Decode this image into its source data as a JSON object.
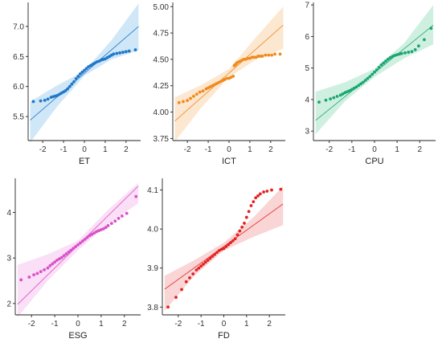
{
  "chart_data": [
    {
      "type": "scatter",
      "xlabel": "ET",
      "ylabel": "",
      "xlim": [
        -2.7,
        2.7
      ],
      "ylim": [
        5.1,
        7.4
      ],
      "xticks": [
        -2,
        -1,
        0,
        1,
        2
      ],
      "xtick_labels": [
        "-2",
        "-1",
        "0",
        "1",
        "2"
      ],
      "yticks": [
        5.5,
        6.0,
        6.5,
        7.0
      ],
      "ytick_labels": [
        "5.5",
        "6.0",
        "6.5",
        "7.0"
      ],
      "color": "#1f77c9",
      "band_color": "#a9d3f2",
      "line": {
        "intercept": 6.22,
        "slope": 0.3
      },
      "band": {
        "x": [
          -2.6,
          -1.3,
          0,
          1.3,
          2.6
        ],
        "lower": [
          5.07,
          5.67,
          6.18,
          6.45,
          6.6
        ],
        "upper": [
          5.75,
          6.02,
          6.26,
          6.77,
          7.38
        ]
      },
      "points": {
        "x": [
          -2.45,
          -2.1,
          -1.9,
          -1.75,
          -1.6,
          -1.5,
          -1.4,
          -1.3,
          -1.2,
          -1.1,
          -1.0,
          -0.9,
          -0.8,
          -0.7,
          -0.6,
          -0.5,
          -0.4,
          -0.3,
          -0.2,
          -0.1,
          0.0,
          0.1,
          0.2,
          0.3,
          0.4,
          0.5,
          0.6,
          0.7,
          0.8,
          0.9,
          1.0,
          1.1,
          1.2,
          1.3,
          1.4,
          1.55,
          1.7,
          1.85,
          2.0,
          2.15,
          2.45
        ],
        "y": [
          5.75,
          5.76,
          5.77,
          5.79,
          5.82,
          5.83,
          5.84,
          5.85,
          5.87,
          5.89,
          5.91,
          5.93,
          5.96,
          6.0,
          6.04,
          6.08,
          6.13,
          6.17,
          6.21,
          6.24,
          6.27,
          6.3,
          6.33,
          6.35,
          6.37,
          6.39,
          6.41,
          6.42,
          6.44,
          6.45,
          6.46,
          6.48,
          6.5,
          6.52,
          6.54,
          6.55,
          6.56,
          6.57,
          6.58,
          6.59,
          6.61
        ]
      }
    },
    {
      "type": "scatter",
      "xlabel": "ICT",
      "ylabel": "",
      "xlim": [
        -2.7,
        2.7
      ],
      "ylim": [
        3.73,
        5.04
      ],
      "xticks": [
        -2,
        -1,
        0,
        1,
        2
      ],
      "xtick_labels": [
        "-2",
        "-1",
        "0",
        "1",
        "2"
      ],
      "yticks": [
        3.75,
        4.0,
        4.25,
        4.5,
        4.75,
        5.0
      ],
      "ytick_labels": [
        "3.75",
        "4.00",
        "4.25",
        "4.50",
        "4.75",
        "5.00"
      ],
      "color": "#f08a1c",
      "band_color": "#f9d3ab",
      "line": {
        "intercept": 4.37,
        "slope": 0.175
      },
      "band": {
        "x": [
          -2.6,
          -1.3,
          0,
          1.3,
          2.6
        ],
        "lower": [
          3.72,
          4.05,
          4.33,
          4.5,
          4.6
        ],
        "upper": [
          4.14,
          4.26,
          4.41,
          4.71,
          5.0
        ]
      },
      "points": {
        "x": [
          -2.4,
          -2.2,
          -2.0,
          -1.85,
          -1.7,
          -1.55,
          -1.4,
          -1.25,
          -1.1,
          -1.0,
          -0.9,
          -0.8,
          -0.7,
          -0.6,
          -0.5,
          -0.4,
          -0.3,
          -0.2,
          -0.1,
          0.0,
          0.1,
          0.2,
          0.25,
          0.3,
          0.35,
          0.4,
          0.5,
          0.6,
          0.7,
          0.8,
          0.9,
          1.0,
          1.1,
          1.2,
          1.3,
          1.4,
          1.5,
          1.6,
          1.75,
          1.9,
          2.05,
          2.2,
          2.45
        ],
        "y": [
          4.09,
          4.1,
          4.11,
          4.13,
          4.15,
          4.17,
          4.19,
          4.2,
          4.22,
          4.23,
          4.24,
          4.25,
          4.26,
          4.27,
          4.28,
          4.29,
          4.3,
          4.31,
          4.32,
          4.32,
          4.33,
          4.34,
          4.44,
          4.45,
          4.46,
          4.47,
          4.48,
          4.49,
          4.5,
          4.5,
          4.51,
          4.51,
          4.52,
          4.52,
          4.52,
          4.53,
          4.53,
          4.53,
          4.54,
          4.54,
          4.54,
          4.55,
          4.55
        ]
      }
    },
    {
      "type": "scatter",
      "xlabel": "CPU",
      "ylabel": "",
      "xlim": [
        -2.7,
        2.7
      ],
      "ylim": [
        2.7,
        7.08
      ],
      "xticks": [
        -2,
        -1,
        0,
        1,
        2
      ],
      "xtick_labels": [
        "-2",
        "-1",
        "0",
        "1",
        "2"
      ],
      "yticks": [
        3,
        4,
        5,
        6,
        7
      ],
      "ytick_labels": [
        "3",
        "4",
        "5",
        "6",
        "7"
      ],
      "color": "#1aa673",
      "band_color": "#a8e4c9",
      "line": {
        "intercept": 4.85,
        "slope": 0.58
      },
      "band": {
        "x": [
          -2.6,
          -1.3,
          0,
          1.3,
          2.6
        ],
        "lower": [
          2.9,
          3.95,
          4.72,
          5.3,
          5.75
        ],
        "upper": [
          4.25,
          4.55,
          4.98,
          5.78,
          7.0
        ]
      },
      "points": {
        "x": [
          -2.45,
          -2.15,
          -1.95,
          -1.8,
          -1.65,
          -1.5,
          -1.4,
          -1.3,
          -1.2,
          -1.1,
          -1.0,
          -0.9,
          -0.8,
          -0.7,
          -0.6,
          -0.5,
          -0.4,
          -0.3,
          -0.2,
          -0.1,
          0.0,
          0.1,
          0.2,
          0.3,
          0.4,
          0.5,
          0.6,
          0.7,
          0.8,
          0.9,
          1.0,
          1.1,
          1.2,
          1.35,
          1.5,
          1.65,
          1.8,
          1.95,
          2.2,
          2.5
        ],
        "y": [
          3.92,
          3.98,
          4.02,
          4.06,
          4.1,
          4.14,
          4.18,
          4.22,
          4.25,
          4.28,
          4.32,
          4.36,
          4.4,
          4.45,
          4.5,
          4.55,
          4.61,
          4.67,
          4.73,
          4.8,
          4.87,
          4.94,
          5.02,
          5.1,
          5.16,
          5.22,
          5.28,
          5.33,
          5.37,
          5.4,
          5.42,
          5.44,
          5.46,
          5.48,
          5.5,
          5.52,
          5.58,
          5.7,
          5.9,
          6.26
        ]
      }
    },
    {
      "type": "scatter",
      "xlabel": "ESG",
      "ylabel": "",
      "xlim": [
        -2.7,
        2.7
      ],
      "ylim": [
        1.75,
        4.75
      ],
      "xticks": [
        -2,
        -1,
        0,
        1,
        2
      ],
      "xtick_labels": [
        "-2",
        "-1",
        "0",
        "1",
        "2"
      ],
      "yticks": [
        2,
        3,
        4
      ],
      "ytick_labels": [
        "2",
        "3",
        "4"
      ],
      "color": "#d94fc9",
      "band_color": "#f6c4ef",
      "line": {
        "intercept": 3.28,
        "slope": 0.5
      },
      "band": {
        "x": [
          -2.6,
          -1.3,
          0,
          1.3,
          2.6
        ],
        "lower": [
          1.7,
          2.5,
          3.17,
          3.75,
          4.2
        ],
        "upper": [
          2.85,
          3.08,
          3.38,
          4.06,
          4.65
        ]
      },
      "points": {
        "x": [
          -2.45,
          -2.1,
          -1.9,
          -1.75,
          -1.6,
          -1.45,
          -1.3,
          -1.2,
          -1.1,
          -1.0,
          -0.9,
          -0.8,
          -0.7,
          -0.6,
          -0.5,
          -0.4,
          -0.3,
          -0.2,
          -0.1,
          0.0,
          0.1,
          0.2,
          0.3,
          0.4,
          0.5,
          0.6,
          0.7,
          0.8,
          0.9,
          1.0,
          1.1,
          1.2,
          1.3,
          1.45,
          1.6,
          1.75,
          1.9,
          2.1,
          2.5
        ],
        "y": [
          2.52,
          2.58,
          2.63,
          2.66,
          2.7,
          2.74,
          2.78,
          2.83,
          2.87,
          2.91,
          2.95,
          2.98,
          3.01,
          3.05,
          3.09,
          3.13,
          3.17,
          3.21,
          3.25,
          3.29,
          3.33,
          3.37,
          3.41,
          3.45,
          3.49,
          3.52,
          3.55,
          3.58,
          3.6,
          3.62,
          3.64,
          3.67,
          3.71,
          3.76,
          3.81,
          3.87,
          3.92,
          3.98,
          4.35
        ]
      }
    },
    {
      "type": "scatter",
      "xlabel": "FD",
      "ylabel": "",
      "xlim": [
        -2.7,
        2.7
      ],
      "ylim": [
        3.78,
        4.13
      ],
      "xticks": [
        -2,
        -1,
        0,
        1,
        2
      ],
      "xtick_labels": [
        "-2",
        "-1",
        "0",
        "1",
        "2"
      ],
      "yticks": [
        3.8,
        3.9,
        4.0,
        4.1
      ],
      "ytick_labels": [
        "3.8",
        "3.9",
        "4.0",
        "4.1"
      ],
      "color": "#e32222",
      "band_color": "#f5b3b3",
      "line": {
        "intercept": 3.955,
        "slope": 0.042
      },
      "band": {
        "x": [
          -2.6,
          -1.3,
          0,
          1.3,
          2.6
        ],
        "lower": [
          3.79,
          3.88,
          3.945,
          3.98,
          4.01
        ],
        "upper": [
          3.88,
          3.92,
          3.965,
          4.03,
          4.11
        ]
      },
      "points": {
        "x": [
          -2.45,
          -2.1,
          -1.85,
          -1.65,
          -1.5,
          -1.35,
          -1.2,
          -1.1,
          -1.0,
          -0.9,
          -0.8,
          -0.7,
          -0.6,
          -0.5,
          -0.4,
          -0.3,
          -0.2,
          -0.1,
          0.0,
          0.1,
          0.2,
          0.3,
          0.4,
          0.5,
          0.6,
          0.7,
          0.8,
          0.9,
          1.0,
          1.1,
          1.2,
          1.3,
          1.4,
          1.5,
          1.6,
          1.75,
          1.9,
          2.1,
          2.5
        ],
        "y": [
          3.8,
          3.825,
          3.845,
          3.865,
          3.875,
          3.885,
          3.895,
          3.9,
          3.905,
          3.91,
          3.915,
          3.92,
          3.925,
          3.93,
          3.935,
          3.94,
          3.945,
          3.948,
          3.95,
          3.955,
          3.96,
          3.965,
          3.97,
          3.975,
          3.985,
          3.995,
          4.005,
          4.015,
          4.03,
          4.045,
          4.06,
          4.07,
          4.08,
          4.085,
          4.09,
          4.095,
          4.097,
          4.1,
          4.102
        ]
      }
    }
  ]
}
